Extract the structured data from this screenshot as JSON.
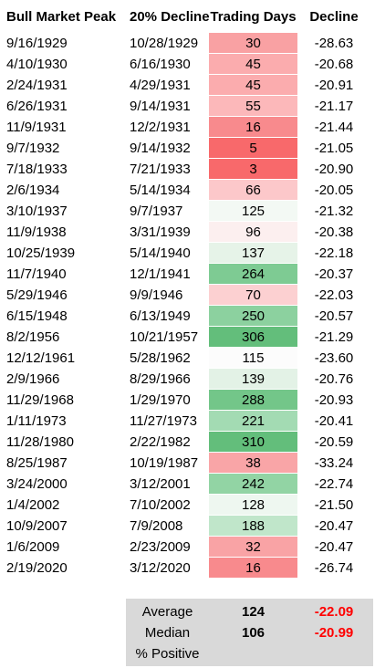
{
  "headers": {
    "peak": "Bull Market Peak",
    "decline_date": "20% Decline",
    "days": "Trading Days",
    "decline": "Decline"
  },
  "rows": [
    {
      "peak": "9/16/1929",
      "decline_date": "10/28/1929",
      "days": "30",
      "decline": "-28.63",
      "color": "#f9a1a3"
    },
    {
      "peak": "4/10/1930",
      "decline_date": "6/16/1930",
      "days": "45",
      "decline": "-20.68",
      "color": "#fbacae"
    },
    {
      "peak": "2/24/1931",
      "decline_date": "4/29/1931",
      "days": "45",
      "decline": "-20.91",
      "color": "#fbacae"
    },
    {
      "peak": "6/26/1931",
      "decline_date": "9/14/1931",
      "days": "55",
      "decline": "-21.17",
      "color": "#fcb8ba"
    },
    {
      "peak": "11/9/1931",
      "decline_date": "12/2/1931",
      "days": "16",
      "decline": "-21.44",
      "color": "#f88a8d"
    },
    {
      "peak": "9/7/1932",
      "decline_date": "9/14/1932",
      "days": "5",
      "decline": "-21.05",
      "color": "#f8696b"
    },
    {
      "peak": "7/18/1933",
      "decline_date": "7/21/1933",
      "days": "3",
      "decline": "-20.90",
      "color": "#f8696b"
    },
    {
      "peak": "2/6/1934",
      "decline_date": "5/14/1934",
      "days": "66",
      "decline": "-20.05",
      "color": "#fcc8ca"
    },
    {
      "peak": "3/10/1937",
      "decline_date": "9/7/1937",
      "days": "125",
      "decline": "-21.32",
      "color": "#f3f9f4"
    },
    {
      "peak": "11/9/1938",
      "decline_date": "3/31/1939",
      "days": "96",
      "decline": "-20.38",
      "color": "#fcefef"
    },
    {
      "peak": "10/25/1939",
      "decline_date": "5/14/1940",
      "days": "137",
      "decline": "-22.18",
      "color": "#e6f3e8"
    },
    {
      "peak": "11/7/1940",
      "decline_date": "12/1/1941",
      "days": "264",
      "decline": "-20.37",
      "color": "#7ecb93"
    },
    {
      "peak": "5/29/1946",
      "decline_date": "9/9/1946",
      "days": "70",
      "decline": "-22.03",
      "color": "#fcd0d1"
    },
    {
      "peak": "6/15/1948",
      "decline_date": "6/13/1949",
      "days": "250",
      "decline": "-20.57",
      "color": "#8cd19f"
    },
    {
      "peak": "8/2/1956",
      "decline_date": "10/21/1957",
      "days": "306",
      "decline": "-21.29",
      "color": "#63be7b"
    },
    {
      "peak": "12/12/1961",
      "decline_date": "5/28/1962",
      "days": "115",
      "decline": "-23.60",
      "color": "#fcfcfc"
    },
    {
      "peak": "2/9/1966",
      "decline_date": "8/29/1966",
      "days": "139",
      "decline": "-20.76",
      "color": "#e3f2e6"
    },
    {
      "peak": "11/29/1968",
      "decline_date": "1/29/1970",
      "days": "288",
      "decline": "-20.93",
      "color": "#73c689"
    },
    {
      "peak": "1/11/1973",
      "decline_date": "11/27/1973",
      "days": "221",
      "decline": "-20.41",
      "color": "#a3dbb3"
    },
    {
      "peak": "11/28/1980",
      "decline_date": "2/22/1982",
      "days": "310",
      "decline": "-20.59",
      "color": "#63be7b"
    },
    {
      "peak": "8/25/1987",
      "decline_date": "10/19/1987",
      "days": "38",
      "decline": "-33.24",
      "color": "#f9a5a7"
    },
    {
      "peak": "3/24/2000",
      "decline_date": "3/12/2001",
      "days": "242",
      "decline": "-22.74",
      "color": "#92d4a4"
    },
    {
      "peak": "1/4/2002",
      "decline_date": "7/10/2002",
      "days": "128",
      "decline": "-21.50",
      "color": "#eef7f0"
    },
    {
      "peak": "10/9/2007",
      "decline_date": "7/9/2008",
      "days": "188",
      "decline": "-20.47",
      "color": "#c0e6ca"
    },
    {
      "peak": "1/6/2009",
      "decline_date": "2/23/2009",
      "days": "32",
      "decline": "-20.47",
      "color": "#f9a3a5"
    },
    {
      "peak": "2/19/2020",
      "decline_date": "3/12/2020",
      "days": "16",
      "decline": "-26.74",
      "color": "#f88a8d"
    }
  ],
  "summary": {
    "average": {
      "label": "Average",
      "days": "124",
      "decline": "-22.09"
    },
    "median": {
      "label": "Median",
      "days": "106",
      "decline": "-20.99"
    },
    "positive": {
      "label": "% Positive",
      "days": "",
      "decline": ""
    }
  }
}
